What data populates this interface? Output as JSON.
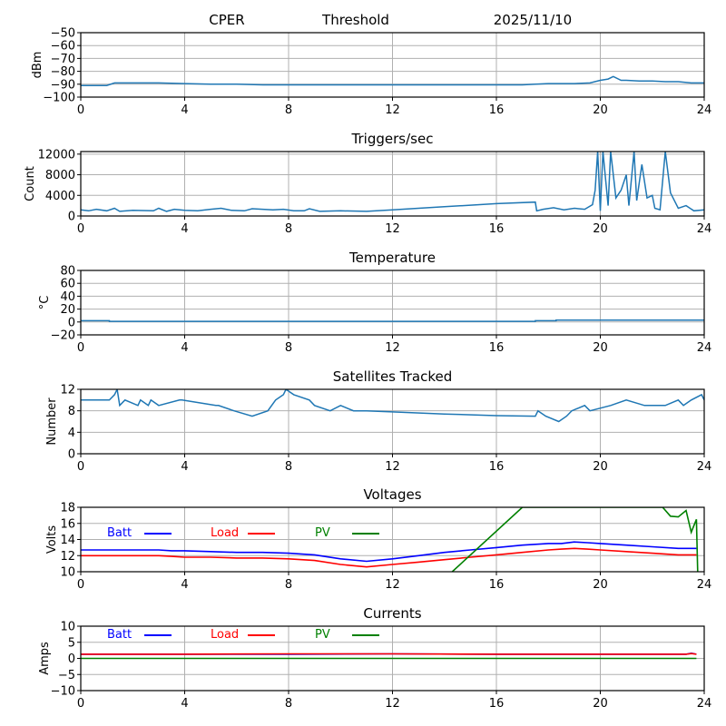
{
  "header": {
    "station": "CPER",
    "mode": "Threshold",
    "date": "2025/11/10"
  },
  "chart_data": [
    {
      "type": "line",
      "title": "",
      "xlabel": "",
      "ylabel": "dBm",
      "xlim": [
        0,
        24
      ],
      "ylim": [
        -100,
        -50
      ],
      "xticks": [
        0,
        4,
        8,
        12,
        16,
        20,
        24
      ],
      "yticks": [
        -100,
        -90,
        -80,
        -70,
        -60,
        -50
      ],
      "ytick_labels": [
        "−100",
        "−90",
        "−80",
        "−70",
        "−60",
        "−50"
      ],
      "grid": true,
      "series": [
        {
          "name": "Threshold",
          "color": "#1f77b4",
          "x": [
            0,
            0.5,
            1.0,
            1.3,
            2,
            3,
            4,
            5,
            6,
            7,
            8,
            9,
            10,
            11,
            12,
            13,
            14,
            15,
            16,
            17,
            17.5,
            18,
            19,
            19.6,
            20,
            20.3,
            20.5,
            20.8,
            21,
            21.5,
            22,
            22.5,
            23,
            23.5,
            24
          ],
          "y": [
            -91,
            -91,
            -91,
            -89,
            -89,
            -89,
            -89.5,
            -90,
            -90,
            -90.5,
            -90.5,
            -90.5,
            -90.5,
            -90.5,
            -90.5,
            -90.5,
            -90.5,
            -90.5,
            -90.5,
            -90.5,
            -90,
            -89.5,
            -89.5,
            -89,
            -87,
            -86,
            -84,
            -87,
            -87,
            -87.5,
            -87.5,
            -88,
            -88,
            -89,
            -89
          ]
        }
      ]
    },
    {
      "type": "line",
      "title": "Triggers/sec",
      "xlabel": "",
      "ylabel": "Count",
      "xlim": [
        0,
        24
      ],
      "ylim": [
        0,
        12500
      ],
      "xticks": [
        0,
        4,
        8,
        12,
        16,
        20,
        24
      ],
      "yticks": [
        0,
        4000,
        8000,
        12000
      ],
      "grid": true,
      "series": [
        {
          "name": "Triggers",
          "color": "#1f77b4",
          "x": [
            0,
            0.3,
            0.6,
            1.0,
            1.3,
            1.5,
            2,
            2.8,
            3,
            3.3,
            3.6,
            4,
            4.5,
            5,
            5.4,
            5.8,
            6.3,
            6.6,
            7,
            7.4,
            7.8,
            8.2,
            8.6,
            8.8,
            9.2,
            10,
            11,
            12,
            13,
            14,
            15,
            16,
            17.5,
            17.55,
            17.8,
            18.2,
            18.6,
            19,
            19.4,
            19.7,
            19.8,
            19.9,
            20.0,
            20.1,
            20.3,
            20.4,
            20.6,
            20.8,
            21.0,
            21.1,
            21.3,
            21.4,
            21.6,
            21.8,
            22.0,
            22.1,
            22.3,
            22.5,
            22.7,
            23.0,
            23.3,
            23.6,
            24
          ],
          "y": [
            1200,
            1000,
            1300,
            1000,
            1500,
            900,
            1100,
            1000,
            1500,
            900,
            1300,
            1100,
            1000,
            1300,
            1500,
            1100,
            1000,
            1400,
            1300,
            1200,
            1300,
            1000,
            1000,
            1400,
            900,
            1000,
            900,
            1200,
            1500,
            1800,
            2100,
            2400,
            2700,
            1000,
            1300,
            1600,
            1200,
            1500,
            1300,
            2200,
            5000,
            12500,
            1000,
            12500,
            2000,
            12500,
            3500,
            5000,
            8000,
            2000,
            12500,
            3000,
            10000,
            3500,
            4000,
            1500,
            1200,
            12500,
            4500,
            1500,
            2000,
            1000,
            1200
          ]
        }
      ]
    },
    {
      "type": "line",
      "title": "Temperature",
      "xlabel": "",
      "ylabel": "°C",
      "xlim": [
        0,
        24
      ],
      "ylim": [
        -20,
        80
      ],
      "xticks": [
        0,
        4,
        8,
        12,
        16,
        20,
        24
      ],
      "yticks": [
        -20,
        0,
        20,
        40,
        60,
        80
      ],
      "ytick_labels": [
        "−20",
        "0",
        "20",
        "40",
        "60",
        "80"
      ],
      "grid": true,
      "series": [
        {
          "name": "Temperature",
          "color": "#1f77b4",
          "x": [
            0,
            1.1,
            1.1,
            17.5,
            17.5,
            18.3,
            18.3,
            24
          ],
          "y": [
            2,
            2,
            1,
            1,
            2,
            2,
            3,
            3
          ]
        }
      ]
    },
    {
      "type": "line",
      "title": "Satellites Tracked",
      "xlabel": "",
      "ylabel": "Number",
      "xlim": [
        0,
        24
      ],
      "ylim": [
        0,
        12
      ],
      "xticks": [
        0,
        4,
        8,
        12,
        16,
        20,
        24
      ],
      "yticks": [
        0,
        4,
        8,
        12
      ],
      "grid": true,
      "series": [
        {
          "name": "Satellites",
          "color": "#1f77b4",
          "x": [
            0,
            1.1,
            1.3,
            1.4,
            1.5,
            1.7,
            2.2,
            2.3,
            2.6,
            2.7,
            3.0,
            3.8,
            3.9,
            5.2,
            5.3,
            5.9,
            6.6,
            7.2,
            7.5,
            7.8,
            7.9,
            8.2,
            8.8,
            9.0,
            9.6,
            10.0,
            10.5,
            11.0,
            12,
            14,
            16,
            17.5,
            17.6,
            17.9,
            18.4,
            18.7,
            18.9,
            19.4,
            19.6,
            20.4,
            21.0,
            21.7,
            22.0,
            22.5,
            23.0,
            23.2,
            23.5,
            23.9,
            24
          ],
          "y": [
            10,
            10,
            11,
            12,
            9,
            10,
            9,
            10,
            9,
            10,
            9,
            10,
            10,
            9,
            9,
            8,
            7,
            8,
            10,
            11,
            12,
            11,
            10,
            9,
            8,
            9,
            8,
            8,
            7.8,
            7.4,
            7.1,
            7,
            8,
            7,
            6,
            7,
            8,
            9,
            8,
            9,
            10,
            9,
            9,
            9,
            10,
            9,
            10,
            11,
            10
          ]
        }
      ]
    },
    {
      "type": "line",
      "title": "Voltages",
      "xlabel": "",
      "ylabel": "Volts",
      "xlim": [
        0,
        24
      ],
      "ylim": [
        10,
        18
      ],
      "xticks": [
        0,
        4,
        8,
        12,
        16,
        20,
        24
      ],
      "yticks": [
        10,
        12,
        14,
        16,
        18
      ],
      "grid": true,
      "legend": "inline-top-left",
      "series": [
        {
          "name": "Batt",
          "color": "#0000ff",
          "x": [
            0,
            1,
            2,
            3,
            3.5,
            4,
            5,
            6,
            7,
            8,
            9,
            10,
            11,
            12,
            13,
            14,
            15,
            16,
            17,
            18,
            18.5,
            19,
            19.5,
            20,
            21,
            22,
            23,
            23.7
          ],
          "y": [
            12.7,
            12.7,
            12.7,
            12.7,
            12.6,
            12.6,
            12.5,
            12.4,
            12.4,
            12.3,
            12.1,
            11.6,
            11.3,
            11.6,
            12.0,
            12.4,
            12.7,
            13.0,
            13.3,
            13.5,
            13.5,
            13.7,
            13.6,
            13.5,
            13.3,
            13.1,
            12.9,
            12.9
          ]
        },
        {
          "name": "Load",
          "color": "#ff0000",
          "x": [
            0,
            1,
            2,
            3,
            3.5,
            4,
            5,
            6,
            7,
            8,
            9,
            10,
            11,
            12,
            13,
            14,
            15,
            16,
            17,
            18,
            18.5,
            19,
            19.5,
            20,
            21,
            22,
            23,
            23.7
          ],
          "y": [
            12.0,
            12.0,
            12.0,
            12.0,
            11.9,
            11.8,
            11.8,
            11.7,
            11.7,
            11.6,
            11.4,
            10.9,
            10.6,
            10.9,
            11.2,
            11.5,
            11.8,
            12.1,
            12.4,
            12.7,
            12.8,
            12.9,
            12.8,
            12.7,
            12.5,
            12.3,
            12.1,
            12.1
          ]
        },
        {
          "name": "PV",
          "color": "#008000",
          "x": [
            14.3,
            17.0,
            22.4,
            22.7,
            23.0,
            23.3,
            23.5,
            23.7,
            23.75
          ],
          "y": [
            10,
            18,
            18,
            16.9,
            16.8,
            17.6,
            14.9,
            16.5,
            10
          ]
        }
      ]
    },
    {
      "type": "line",
      "title": "Currents",
      "xlabel": "",
      "ylabel": "Amps",
      "xlim": [
        0,
        24
      ],
      "ylim": [
        -10,
        10
      ],
      "xticks": [
        0,
        4,
        8,
        12,
        16,
        20,
        24
      ],
      "yticks": [
        -10,
        -5,
        0,
        5,
        10
      ],
      "ytick_labels": [
        "−10",
        "−5",
        "0",
        "5",
        "10"
      ],
      "grid": true,
      "legend": "inline-top-left",
      "series": [
        {
          "name": "Batt",
          "color": "#0000ff",
          "x": [
            0,
            4,
            8,
            12,
            16,
            20,
            23.3,
            23.5,
            23.7
          ],
          "y": [
            1.3,
            1.3,
            1.3,
            1.4,
            1.3,
            1.3,
            1.3,
            1.6,
            1.3
          ]
        },
        {
          "name": "Load",
          "color": "#ff0000",
          "x": [
            0,
            4,
            8,
            12,
            16,
            20,
            23.3,
            23.5,
            23.7
          ],
          "y": [
            1.3,
            1.3,
            1.4,
            1.4,
            1.3,
            1.3,
            1.3,
            1.5,
            1.3
          ]
        },
        {
          "name": "PV",
          "color": "#008000",
          "x": [
            0,
            23.7
          ],
          "y": [
            0,
            0
          ]
        }
      ]
    }
  ]
}
